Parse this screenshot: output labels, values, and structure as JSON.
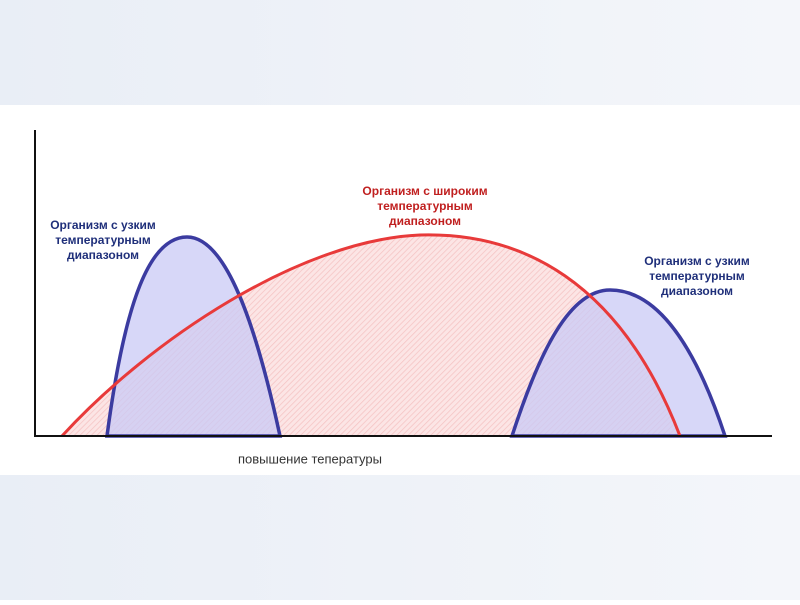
{
  "labels": {
    "narrow_left": [
      "Организм с узким",
      "температурным",
      "диапазоном"
    ],
    "wide": [
      "Организм с широким",
      "температурным",
      "диапазоном"
    ],
    "narrow_right": [
      "Организм с узким",
      "температурным",
      "диапазоном"
    ]
  },
  "x_axis_label": "повышение тепературы"
}
